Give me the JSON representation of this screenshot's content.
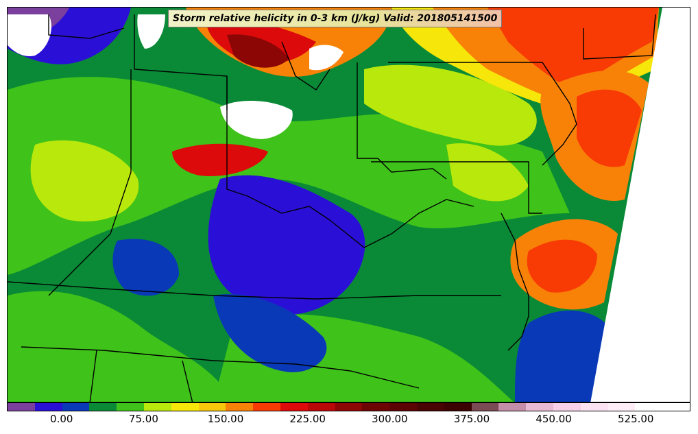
{
  "title": "Storm relative helicity in 0-3 km (J/kg) Valid: 201805141500",
  "colorbar": {
    "colors": [
      "#7b3f9e",
      "#2a10d6",
      "#0a39b7",
      "#0a8a36",
      "#3fc21a",
      "#b8e80c",
      "#f6e60a",
      "#f8c60a",
      "#f88208",
      "#f83b05",
      "#dc0a0a",
      "#b80808",
      "#8c0606",
      "#6e0505",
      "#5c0404",
      "#4a0303",
      "#3c0202",
      "#7a4a55",
      "#c48ea8",
      "#e7b9d4",
      "#f6d0e8",
      "#fbe3f1",
      "#ffeef8",
      "#ffffff",
      "#ffffff"
    ],
    "tick_labels": [
      "0.00",
      "75.00",
      "150.00",
      "225.00",
      "300.00",
      "375.00",
      "450.00",
      "525.00"
    ]
  },
  "map": {
    "background_color": "#0a8a36",
    "no_data_color": "#ffffff"
  }
}
